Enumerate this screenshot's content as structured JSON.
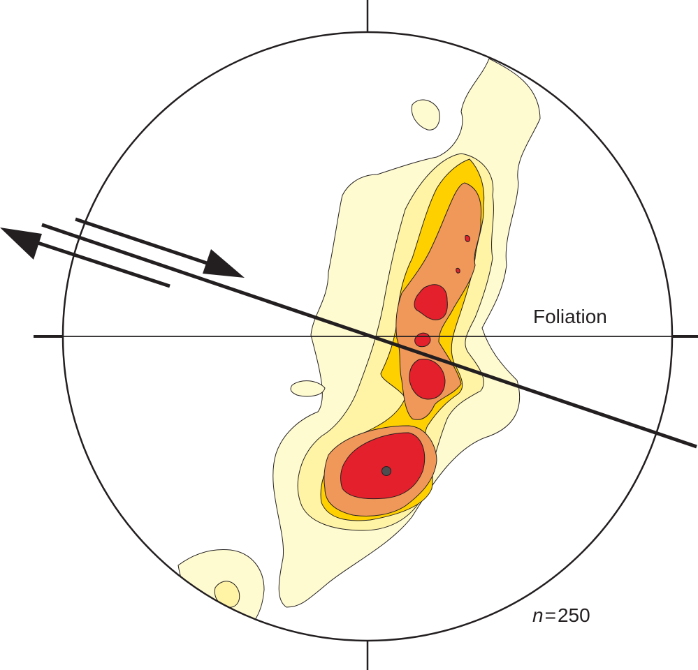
{
  "diagram": {
    "foliation_label": "Foliation",
    "sample_size_symbol": "n",
    "sample_size_equals": "=",
    "sample_size_value": "250"
  },
  "colors": {
    "contour_1": "#fffbd0",
    "contour_2": "#fff4a6",
    "contour_3": "#ffd000",
    "contour_4": "#f0985a",
    "contour_5": "#e3202c",
    "maximum_point": "#4d4d4f",
    "lines": "#231f20"
  },
  "icons": [
    "shear-sense-arrow-top",
    "shear-sense-arrow-bottom"
  ]
}
